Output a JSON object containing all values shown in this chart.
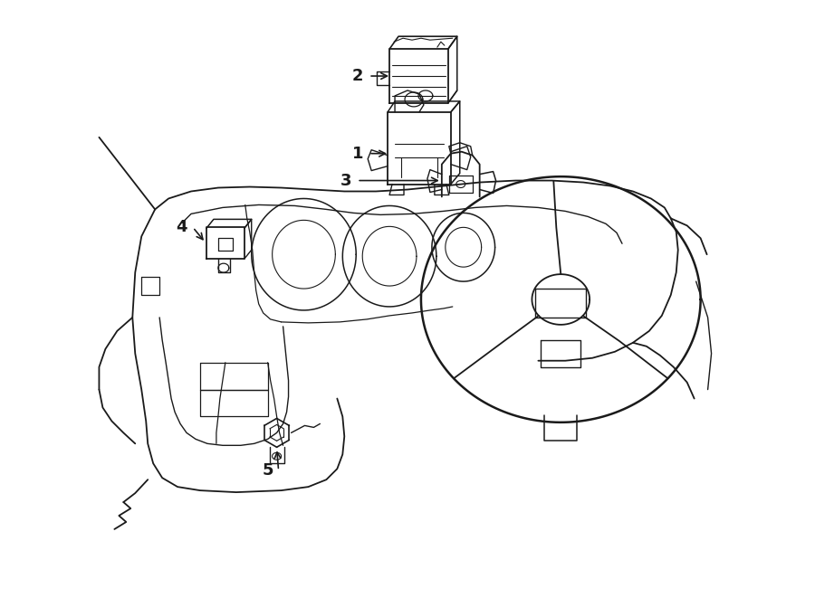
{
  "bg_color": "#ffffff",
  "line_color": "#1a1a1a",
  "lw": 1.1,
  "fig_w": 9.0,
  "fig_h": 6.61,
  "dpi": 100
}
